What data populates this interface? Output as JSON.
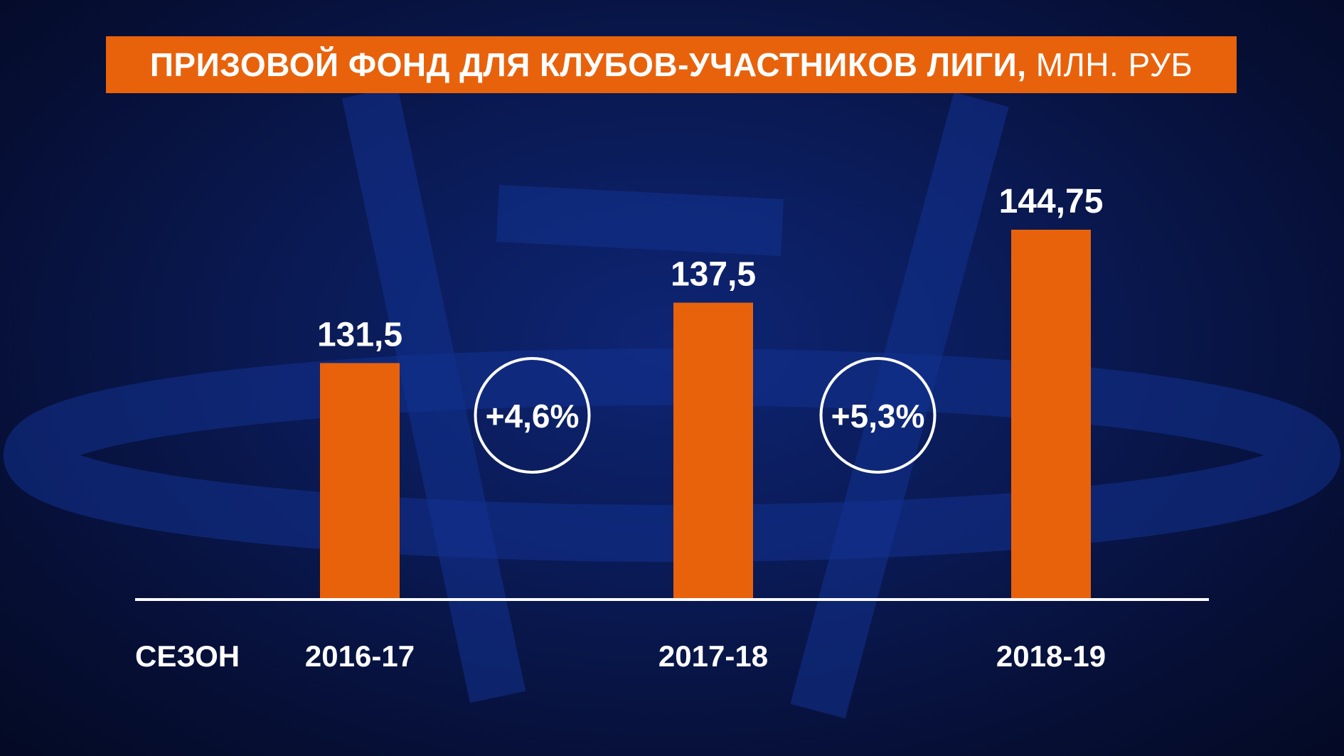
{
  "chart_data": {
    "type": "bar",
    "title": "ПРИЗОВОЙ ФОНД ДЛЯ КЛУБОВ-УЧАСТНИКОВ ЛИГИ,",
    "title_unit": "МЛН. РУБ",
    "xlabel": "СЕЗОН",
    "categories": [
      "2016-17",
      "2017-18",
      "2018-19"
    ],
    "values": [
      131.5,
      137.5,
      144.75
    ],
    "value_labels": [
      "131,5",
      "137,5",
      "144,75"
    ],
    "growth_labels": [
      "+4,6%",
      "+5,3%"
    ],
    "ylim": [
      0,
      160
    ],
    "grid": false,
    "colors": {
      "bar": "#e8620c",
      "text": "#ffffff",
      "axis": "#ffffff"
    }
  }
}
